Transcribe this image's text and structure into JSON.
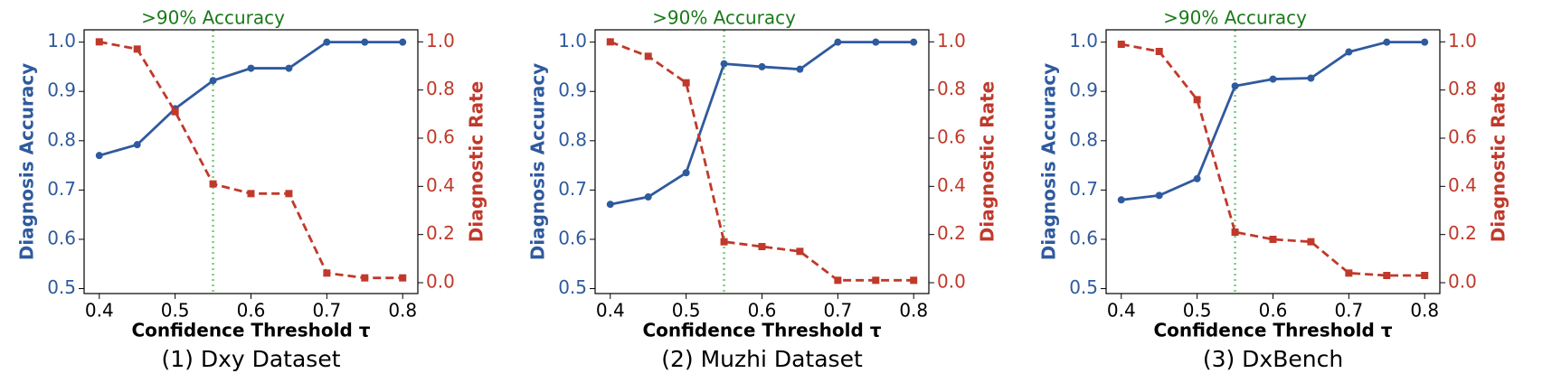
{
  "chart_data": [
    {
      "type": "line",
      "title": "(1) Dxy Dataset",
      "xlabel": "Confidence Threshold τ",
      "ylabel": "Diagnosis Accuracy",
      "y2label": "Diagnostic Rate",
      "annotation": ">90% Accuracy",
      "vline": 0.55,
      "vline_color": "#7fc97f",
      "x": [
        0.4,
        0.45,
        0.5,
        0.55,
        0.6,
        0.65,
        0.7,
        0.75,
        0.8
      ],
      "series": [
        {
          "name": "Diagnosis Accuracy",
          "color": "#2f5a9e",
          "values": [
            0.77,
            0.792,
            0.865,
            0.922,
            0.947,
            0.947,
            1.0,
            1.0,
            1.0
          ]
        },
        {
          "name": "Diagnostic Rate",
          "color": "#c0392b",
          "axis": "y2",
          "values": [
            1.0,
            0.97,
            0.71,
            0.41,
            0.37,
            0.37,
            0.04,
            0.02,
            0.02
          ]
        }
      ],
      "xlim": [
        0.38,
        0.82
      ],
      "xticks": [
        0.4,
        0.5,
        0.6,
        0.7,
        0.8
      ],
      "ylim": [
        0.49,
        1.025
      ],
      "yticks": [
        0.5,
        0.6,
        0.7,
        0.8,
        0.9,
        {
          "value": 1,
          "label": "1.0"
        }
      ],
      "y2lim": [
        -0.045,
        1.05
      ],
      "y2ticks": [
        {
          "value": 0,
          "label": "0.0"
        },
        0.2,
        0.4,
        0.6,
        0.8,
        {
          "value": 1,
          "label": "1.0"
        }
      ]
    },
    {
      "type": "line",
      "title": "(2) Muzhi Dataset",
      "xlabel": "Confidence Threshold τ",
      "ylabel": "Diagnosis Accuracy",
      "y2label": "Diagnostic Rate",
      "annotation": ">90% Accuracy",
      "vline": 0.55,
      "vline_color": "#7fc97f",
      "x": [
        0.4,
        0.45,
        0.5,
        0.55,
        0.6,
        0.65,
        0.7,
        0.75,
        0.8
      ],
      "series": [
        {
          "name": "Diagnosis Accuracy",
          "color": "#2f5a9e",
          "values": [
            0.671,
            0.686,
            0.735,
            0.956,
            0.95,
            0.945,
            1.0,
            1.0,
            1.0
          ]
        },
        {
          "name": "Diagnostic Rate",
          "color": "#c0392b",
          "axis": "y2",
          "values": [
            1.0,
            0.94,
            0.83,
            0.17,
            0.15,
            0.13,
            0.01,
            0.01,
            0.01
          ]
        }
      ],
      "xlim": [
        0.38,
        0.82
      ],
      "xticks": [
        0.4,
        0.5,
        0.6,
        0.7,
        0.8
      ],
      "ylim": [
        0.49,
        1.025
      ],
      "yticks": [
        0.5,
        0.6,
        0.7,
        0.8,
        0.9,
        {
          "value": 1,
          "label": "1.0"
        }
      ],
      "y2lim": [
        -0.045,
        1.05
      ],
      "y2ticks": [
        {
          "value": 0,
          "label": "0.0"
        },
        0.2,
        0.4,
        0.6,
        0.8,
        {
          "value": 1,
          "label": "1.0"
        }
      ]
    },
    {
      "type": "line",
      "title": "(3) DxBench",
      "xlabel": "Confidence Threshold τ",
      "ylabel": "Diagnosis Accuracy",
      "y2label": "Diagnostic Rate",
      "annotation": ">90% Accuracy",
      "vline": 0.55,
      "vline_color": "#7fc97f",
      "x": [
        0.4,
        0.45,
        0.5,
        0.55,
        0.6,
        0.65,
        0.7,
        0.75,
        0.8
      ],
      "series": [
        {
          "name": "Diagnosis Accuracy",
          "color": "#2f5a9e",
          "values": [
            0.68,
            0.689,
            0.723,
            0.911,
            0.925,
            0.927,
            0.98,
            1.0,
            1.0
          ]
        },
        {
          "name": "Diagnostic Rate",
          "color": "#c0392b",
          "axis": "y2",
          "values": [
            0.99,
            0.96,
            0.76,
            0.21,
            0.18,
            0.17,
            0.04,
            0.03,
            0.03
          ]
        }
      ],
      "xlim": [
        0.38,
        0.82
      ],
      "xticks": [
        0.4,
        0.5,
        0.6,
        0.7,
        0.8
      ],
      "ylim": [
        0.49,
        1.025
      ],
      "yticks": [
        0.5,
        0.6,
        0.7,
        0.8,
        0.9,
        {
          "value": 1,
          "label": "1.0"
        }
      ],
      "y2lim": [
        -0.045,
        1.05
      ],
      "y2ticks": [
        {
          "value": 0,
          "label": "0.0"
        },
        0.2,
        0.4,
        0.6,
        0.8,
        {
          "value": 1,
          "label": "1.0"
        }
      ]
    }
  ]
}
